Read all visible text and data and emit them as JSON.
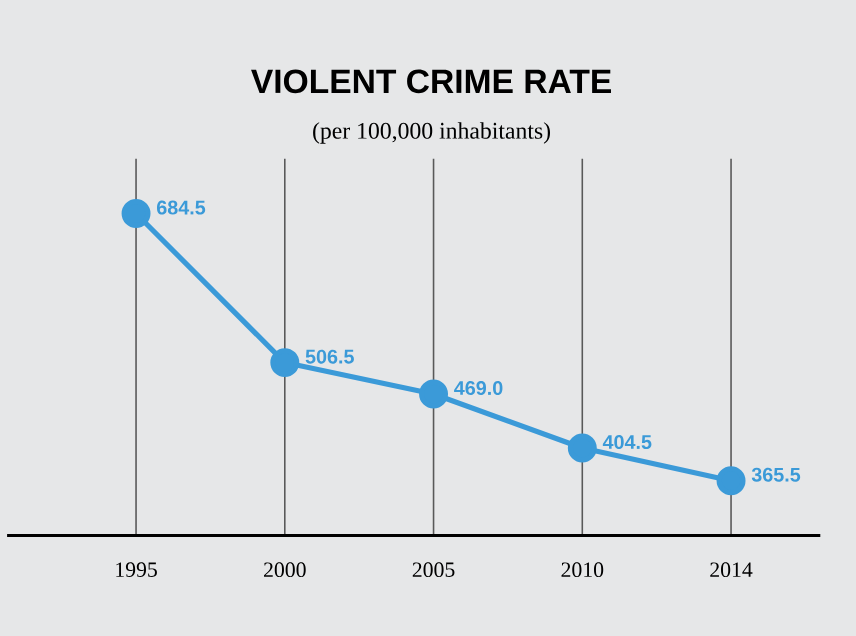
{
  "chart_data": {
    "type": "line",
    "title": "VIOLENT CRIME RATE",
    "subtitle": "(per 100,000 inhabitants)",
    "categories": [
      "1995",
      "2000",
      "2005",
      "2010",
      "2014"
    ],
    "series": [
      {
        "color": "#3b9ad8",
        "values": [
          684.5,
          506.5,
          469.0,
          404.5,
          365.5
        ],
        "value_labels": [
          "684.5",
          "506.5",
          "469.0",
          "404.5",
          "365.5"
        ]
      }
    ],
    "ylim": [
      300,
      750
    ],
    "grid": "x",
    "marker": "circle",
    "line_style": "solid",
    "tick_labels": "x"
  }
}
